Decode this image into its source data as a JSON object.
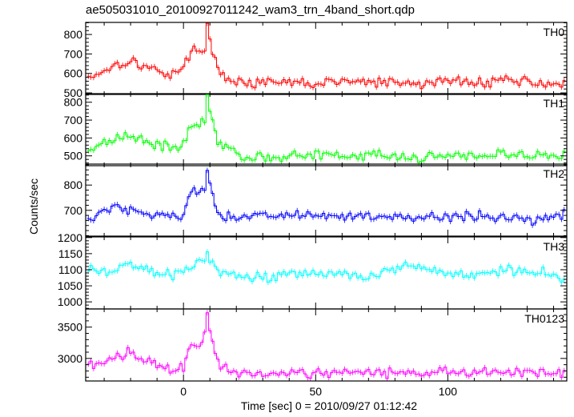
{
  "title": "ae505031010_20100927011242_wam3_trn_4band_short.qdp",
  "ylabel": "Counts/sec",
  "xlabel": "Time [sec] 0 = 2010/09/27 01:12:42",
  "colors": {
    "axis": "#000000",
    "TH0": "#ff0000",
    "TH1": "#00ff00",
    "TH2": "#0000ff",
    "TH3": "#00ffff",
    "TH0123": "#ff00ff"
  },
  "chart_data": {
    "type": "line",
    "x_range": [
      -37,
      145
    ],
    "x_ticks": [
      0,
      50,
      100
    ],
    "x_tick_labels": [
      "0",
      "50",
      "100"
    ],
    "x_minor_step": 10,
    "x_bin_width": 1,
    "panels": [
      {
        "name": "TH0",
        "color_key": "TH0",
        "ylim": [
          492,
          862
        ],
        "y_ticks": [
          500,
          600,
          700,
          800
        ],
        "y_tick_labels": [
          "500",
          "600",
          "700",
          "800"
        ],
        "y_minor_step": 20,
        "series": [
          {
            "x": [
              -35,
              -30,
              -25,
              -20,
              -15,
              -10,
              -5,
              0,
              3,
              6,
              8,
              9,
              10,
              12,
              15,
              20,
              30,
              40,
              50,
              60,
              70,
              80,
              90,
              100,
              110,
              120,
              130,
              140,
              144
            ],
            "y": [
              585,
              615,
              650,
              665,
              640,
              610,
              600,
              625,
              720,
              710,
              750,
              840,
              780,
              650,
              590,
              560,
              545,
              555,
              545,
              560,
              555,
              550,
              545,
              565,
              550,
              570,
              560,
              545,
              555
            ]
          }
        ]
      },
      {
        "name": "TH1",
        "color_key": "TH1",
        "ylim": [
          445,
          848
        ],
        "y_ticks": [
          500,
          600,
          700,
          800
        ],
        "y_tick_labels": [
          "500",
          "600",
          "700",
          "800"
        ],
        "y_minor_step": 20,
        "series": [
          {
            "x": [
              -35,
              -30,
              -25,
              -20,
              -15,
              -10,
              -5,
              0,
              3,
              6,
              8,
              9,
              10,
              12,
              15,
              20,
              30,
              40,
              50,
              60,
              70,
              80,
              90,
              100,
              110,
              120,
              130,
              140,
              144
            ],
            "y": [
              540,
              575,
              610,
              615,
              590,
              555,
              550,
              570,
              670,
              680,
              720,
              820,
              760,
              610,
              550,
              505,
              490,
              500,
              500,
              495,
              505,
              495,
              500,
              500,
              500,
              510,
              500,
              505,
              495
            ]
          }
        ]
      },
      {
        "name": "TH2",
        "color_key": "TH2",
        "ylim": [
          598,
          883
        ],
        "y_ticks": [
          700,
          800
        ],
        "y_tick_labels": [
          "700",
          "800"
        ],
        "y_minor_step": 20,
        "series": [
          {
            "x": [
              -35,
              -30,
              -25,
              -20,
              -15,
              -10,
              -5,
              0,
              3,
              6,
              8,
              9,
              10,
              12,
              15,
              20,
              30,
              40,
              50,
              60,
              70,
              80,
              90,
              100,
              110,
              120,
              130,
              140,
              144
            ],
            "y": [
              665,
              700,
              715,
              705,
              690,
              680,
              680,
              690,
              780,
              760,
              800,
              860,
              800,
              700,
              670,
              670,
              675,
              690,
              680,
              670,
              680,
              665,
              675,
              665,
              680,
              670,
              665,
              675,
              685
            ]
          }
        ]
      },
      {
        "name": "TH3",
        "color_key": "TH3",
        "ylim": [
          978,
          1202
        ],
        "y_ticks": [
          1000,
          1050,
          1100,
          1150,
          1200
        ],
        "y_tick_labels": [
          "1000",
          "1050",
          "1100",
          "1150",
          "1200"
        ],
        "y_minor_step": 10,
        "series": [
          {
            "x": [
              -35,
              -30,
              -25,
              -20,
              -15,
              -10,
              -5,
              0,
              3,
              6,
              8,
              9,
              10,
              12,
              15,
              20,
              30,
              40,
              50,
              60,
              70,
              80,
              90,
              100,
              110,
              120,
              130,
              140,
              144
            ],
            "y": [
              1100,
              1090,
              1105,
              1120,
              1100,
              1090,
              1085,
              1095,
              1110,
              1120,
              1125,
              1140,
              1120,
              1100,
              1095,
              1080,
              1070,
              1090,
              1085,
              1095,
              1080,
              1100,
              1110,
              1090,
              1085,
              1100,
              1095,
              1090,
              1060
            ]
          }
        ]
      },
      {
        "name": "TH0123",
        "color_key": "TH0123",
        "ylim": [
          2640,
          3790
        ],
        "y_ticks": [
          3000,
          3500
        ],
        "y_tick_labels": [
          "3000",
          "3500"
        ],
        "y_minor_step": 100,
        "series": [
          {
            "x": [
              -35,
              -30,
              -25,
              -20,
              -15,
              -10,
              -5,
              0,
              3,
              6,
              8,
              9,
              10,
              12,
              15,
              20,
              30,
              40,
              50,
              60,
              70,
              80,
              90,
              100,
              110,
              120,
              130,
              140,
              144
            ],
            "y": [
              2890,
              2960,
              3040,
              3080,
              2990,
              2880,
              2840,
              2880,
              3260,
              3200,
              3400,
              3720,
              3450,
              3040,
              2860,
              2800,
              2760,
              2790,
              2770,
              2770,
              2780,
              2780,
              2770,
              2810,
              2770,
              2790,
              2790,
              2780,
              2770
            ]
          }
        ]
      }
    ]
  }
}
